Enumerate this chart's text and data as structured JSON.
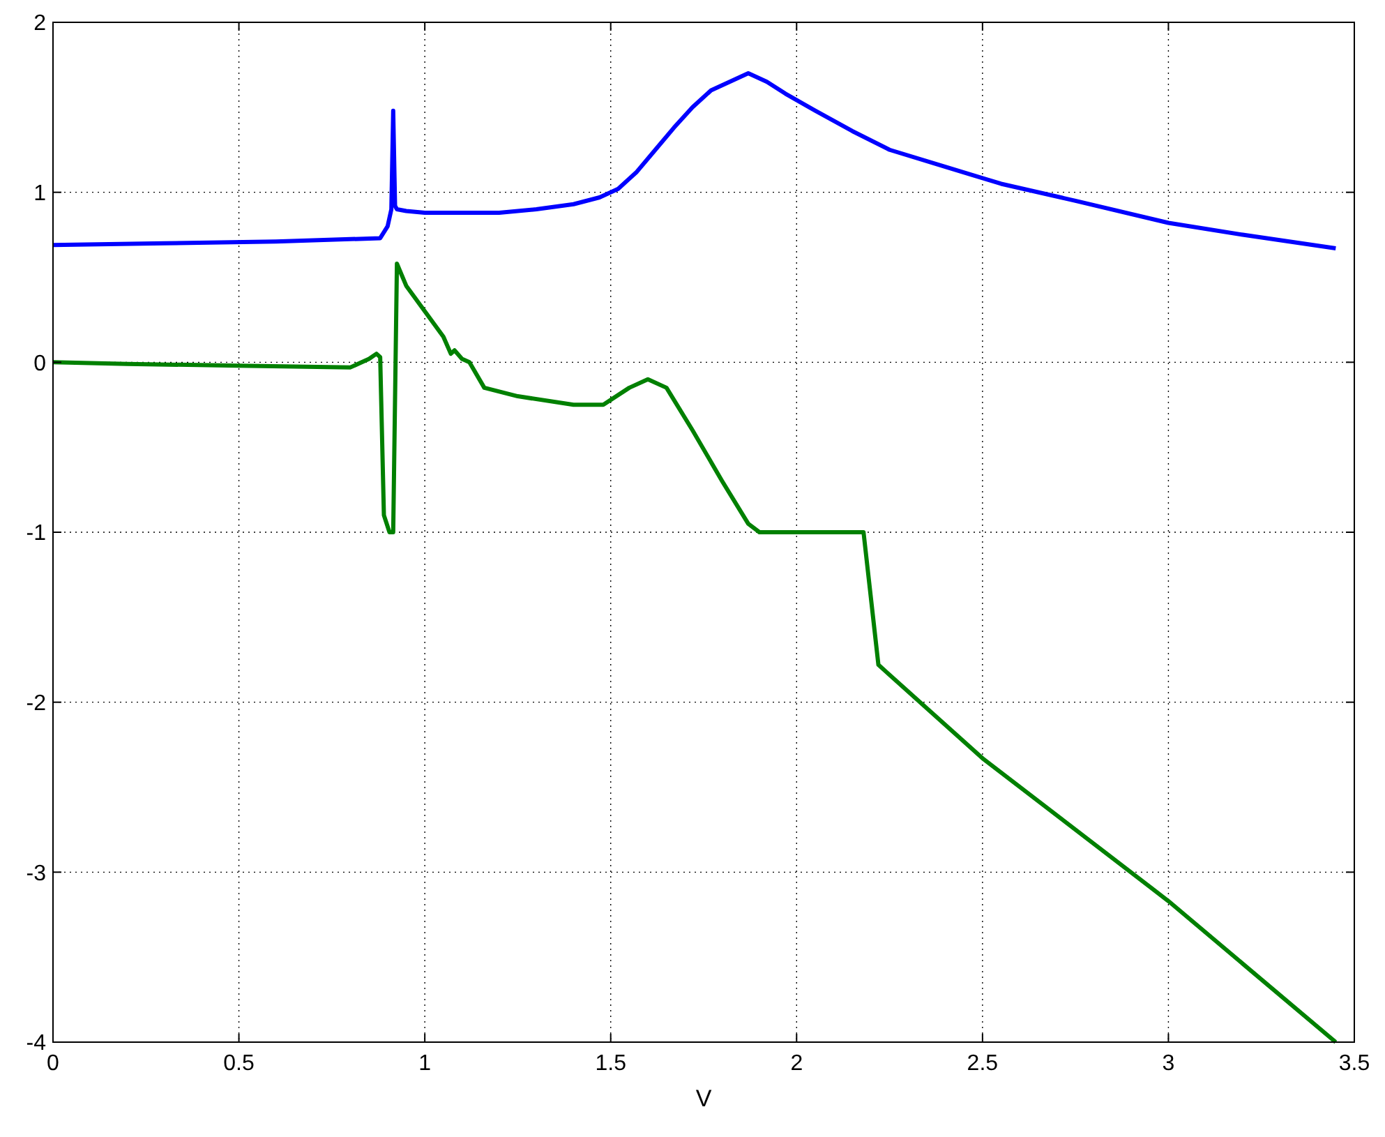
{
  "chart_data": {
    "type": "line",
    "xlabel": "V",
    "xlim": [
      0,
      3.5
    ],
    "ylim": [
      -4,
      2
    ],
    "xticks": [
      0,
      0.5,
      1,
      1.5,
      2,
      2.5,
      3,
      3.5
    ],
    "yticks": [
      -4,
      -3,
      -2,
      -1,
      0,
      1,
      2
    ],
    "grid": true,
    "line_style": "solid",
    "series": [
      {
        "color": "#0000ff",
        "x": [
          0,
          0.3,
          0.6,
          0.88,
          0.9,
          0.91,
          0.915,
          0.92,
          0.925,
          0.95,
          1.0,
          1.1,
          1.2,
          1.3,
          1.4,
          1.47,
          1.52,
          1.57,
          1.62,
          1.67,
          1.72,
          1.77,
          1.82,
          1.87,
          1.92,
          1.97,
          2.05,
          2.15,
          2.25,
          2.4,
          2.55,
          2.75,
          3.0,
          3.2,
          3.45
        ],
        "values": [
          0.69,
          0.7,
          0.71,
          0.73,
          0.8,
          0.9,
          1.48,
          0.92,
          0.9,
          0.89,
          0.88,
          0.88,
          0.88,
          0.9,
          0.93,
          0.97,
          1.02,
          1.12,
          1.25,
          1.38,
          1.5,
          1.6,
          1.65,
          1.7,
          1.65,
          1.58,
          1.48,
          1.36,
          1.25,
          1.15,
          1.05,
          0.95,
          0.82,
          0.75,
          0.67
        ]
      },
      {
        "color": "#008000",
        "x": [
          0,
          0.2,
          0.5,
          0.8,
          0.85,
          0.87,
          0.88,
          0.89,
          0.905,
          0.915,
          0.925,
          0.95,
          1.0,
          1.05,
          1.07,
          1.08,
          1.1,
          1.12,
          1.16,
          1.25,
          1.4,
          1.48,
          1.55,
          1.6,
          1.65,
          1.72,
          1.8,
          1.87,
          1.9,
          2.0,
          2.18,
          2.22,
          2.5,
          3.0,
          3.45
        ],
        "values": [
          0,
          -0.01,
          -0.02,
          -0.03,
          0.02,
          0.05,
          0.03,
          -0.9,
          -1.0,
          -1.0,
          0.58,
          0.45,
          0.3,
          0.15,
          0.05,
          0.07,
          0.02,
          0.0,
          -0.15,
          -0.2,
          -0.25,
          -0.25,
          -0.15,
          -0.1,
          -0.15,
          -0.4,
          -0.7,
          -0.95,
          -1.0,
          -1.0,
          -1.0,
          -1.78,
          -2.33,
          -3.17,
          -4.0
        ]
      }
    ]
  }
}
